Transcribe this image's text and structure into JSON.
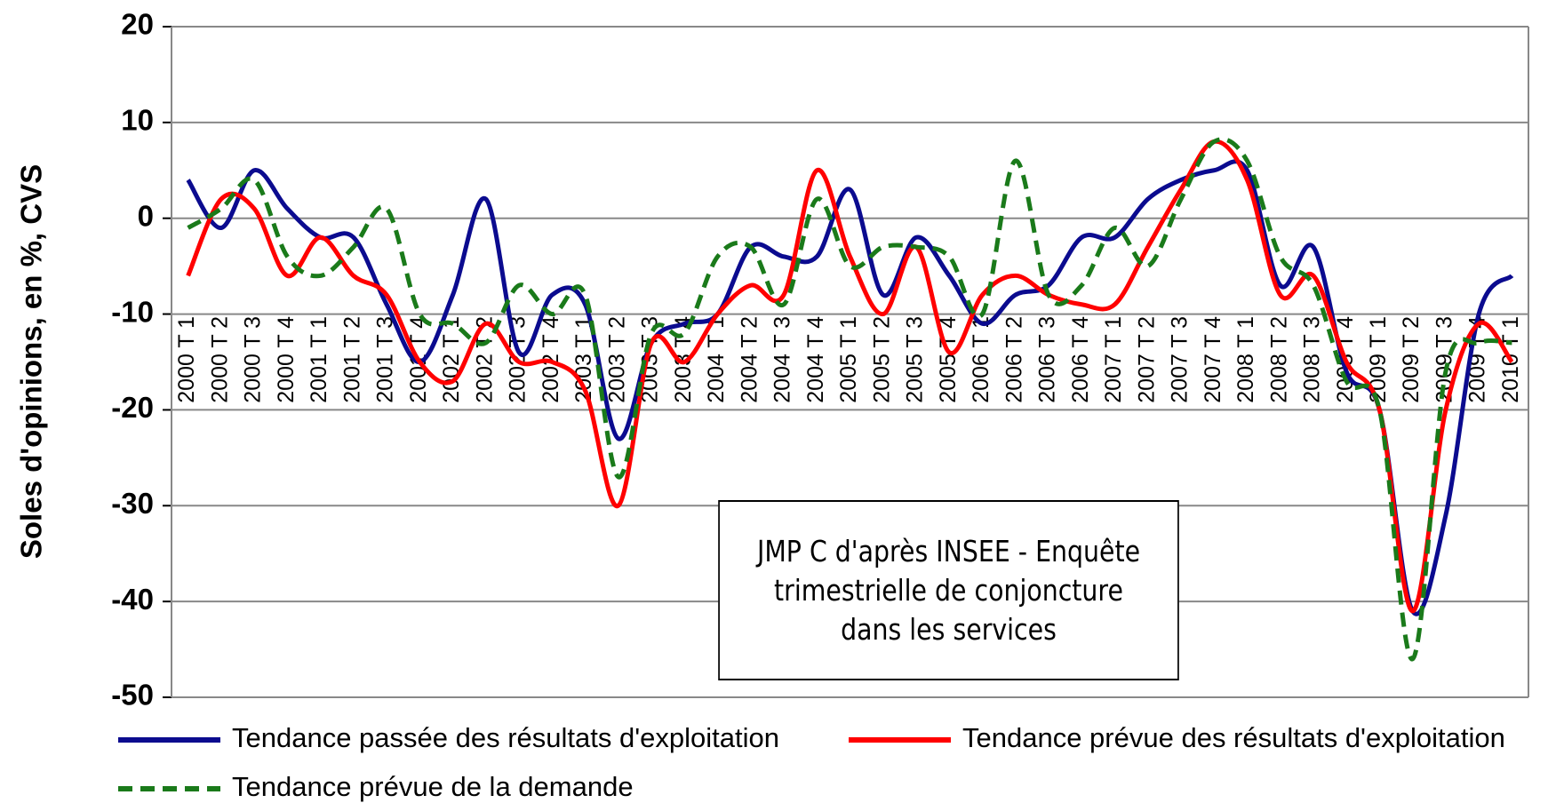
{
  "chart_data": {
    "type": "line",
    "y_label": "Soles d'opinions, en %, CVS",
    "annotation": "JMP C d'après INSEE - Enquête trimestrielle de conjoncture dans les services",
    "categories": [
      "2000 T 1",
      "2000 T 2",
      "2000 T 3",
      "2000 T 4",
      "2001 T 1",
      "2001 T 2",
      "2001 T 3",
      "2001 T 4",
      "2002 T 1",
      "2002 T 2",
      "2002 T 3",
      "2002 T 4",
      "2003 T 1",
      "2003 T 2",
      "2003 T 3",
      "2003 T 4",
      "2004 T 1",
      "2004 T 2",
      "2004 T 3",
      "2004 T 4",
      "2005 T 1",
      "2005 T 2",
      "2005 T 3",
      "2005 T 4",
      "2006 T 1",
      "2006 T 2",
      "2006 T 3",
      "2006 T 4",
      "2007 T 1",
      "2007 T 2",
      "2007 T 3",
      "2007 T 4",
      "2008 T 1",
      "2008 T 2",
      "2008 T 3",
      "2008 T 4",
      "2009 T 1",
      "2009 T 2",
      "2009 T 3",
      "2009 T 4",
      "2010 T 1"
    ],
    "series": [
      {
        "name": "Tendance passée des résultats d'exploitation",
        "color": "#0b0b8f",
        "dash": false,
        "values": [
          4,
          -1,
          5,
          1,
          -2,
          -2,
          -9,
          -15,
          -8,
          2,
          -14,
          -8,
          -9,
          -23,
          -13,
          -11,
          -10,
          -3,
          -4,
          -4,
          3,
          -8,
          -2,
          -6,
          -11,
          -8,
          -7,
          -2,
          -2,
          2,
          4,
          5,
          5,
          -7,
          -3,
          -16,
          -20,
          -41,
          -31,
          -10,
          -6
        ]
      },
      {
        "name": "Tendance prévue des résultats d'exploitation",
        "color": "#ff0000",
        "dash": false,
        "values": [
          -6,
          2,
          1,
          -6,
          -2,
          -6,
          -8,
          -15,
          -17,
          -11,
          -15,
          -15,
          -18,
          -30,
          -13,
          -15,
          -10,
          -7,
          -8,
          5,
          -4,
          -10,
          -3,
          -14,
          -8,
          -6,
          -8,
          -9,
          -9,
          -3,
          3,
          8,
          4,
          -8,
          -6,
          -15,
          -20,
          -41,
          -20,
          -11,
          -15
        ]
      },
      {
        "name": "Tendance prévue de la demande",
        "color": "#1a7a1a",
        "dash": true,
        "values": [
          -1,
          1,
          4,
          -4,
          -6,
          -3,
          1,
          -10,
          -11,
          -13,
          -7,
          -10,
          -8,
          -27,
          -12,
          -12,
          -4,
          -3,
          -9,
          2,
          -5,
          -3,
          -3,
          -4,
          -10,
          6,
          -8,
          -7,
          -1,
          -5,
          2,
          8,
          6,
          -4,
          -7,
          -17,
          -20,
          -46,
          -16,
          -13,
          -13
        ]
      }
    ],
    "ylim": [
      -50,
      20
    ],
    "yticks": [
      -50,
      -40,
      -30,
      -20,
      -10,
      0,
      10,
      20
    ],
    "grid": true
  }
}
